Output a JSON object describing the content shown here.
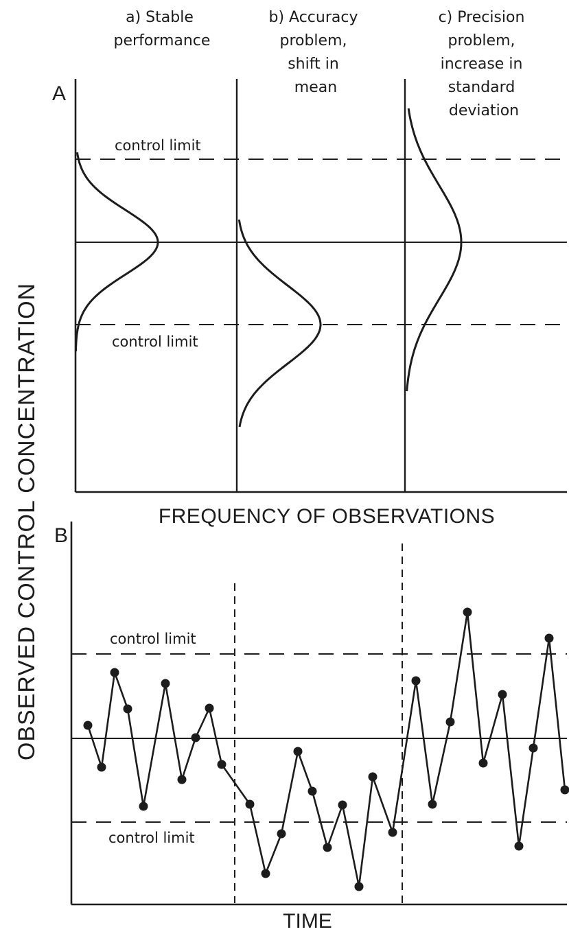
{
  "y_axis_label": "OBSERVED CONTROL CONCENTRATION",
  "panel_a": {
    "letter": "A",
    "x_axis_label": "FREQUENCY OF OBSERVATIONS",
    "upper_limit_label": "control limit",
    "lower_limit_label": "control limit",
    "cases": [
      {
        "lines": [
          "a) Stable",
          "performance"
        ]
      },
      {
        "lines": [
          "b) Accuracy",
          "problem,",
          "shift in",
          "mean"
        ]
      },
      {
        "lines": [
          "c) Precision",
          "problem,",
          "increase in",
          "standard",
          "deviation"
        ]
      }
    ]
  },
  "panel_b": {
    "letter": "B",
    "x_axis_label": "TIME",
    "upper_limit_label": "control limit",
    "lower_limit_label": "control limit"
  },
  "colors": {
    "ink": "#1c1c1c",
    "paper": "#ffffff"
  }
}
